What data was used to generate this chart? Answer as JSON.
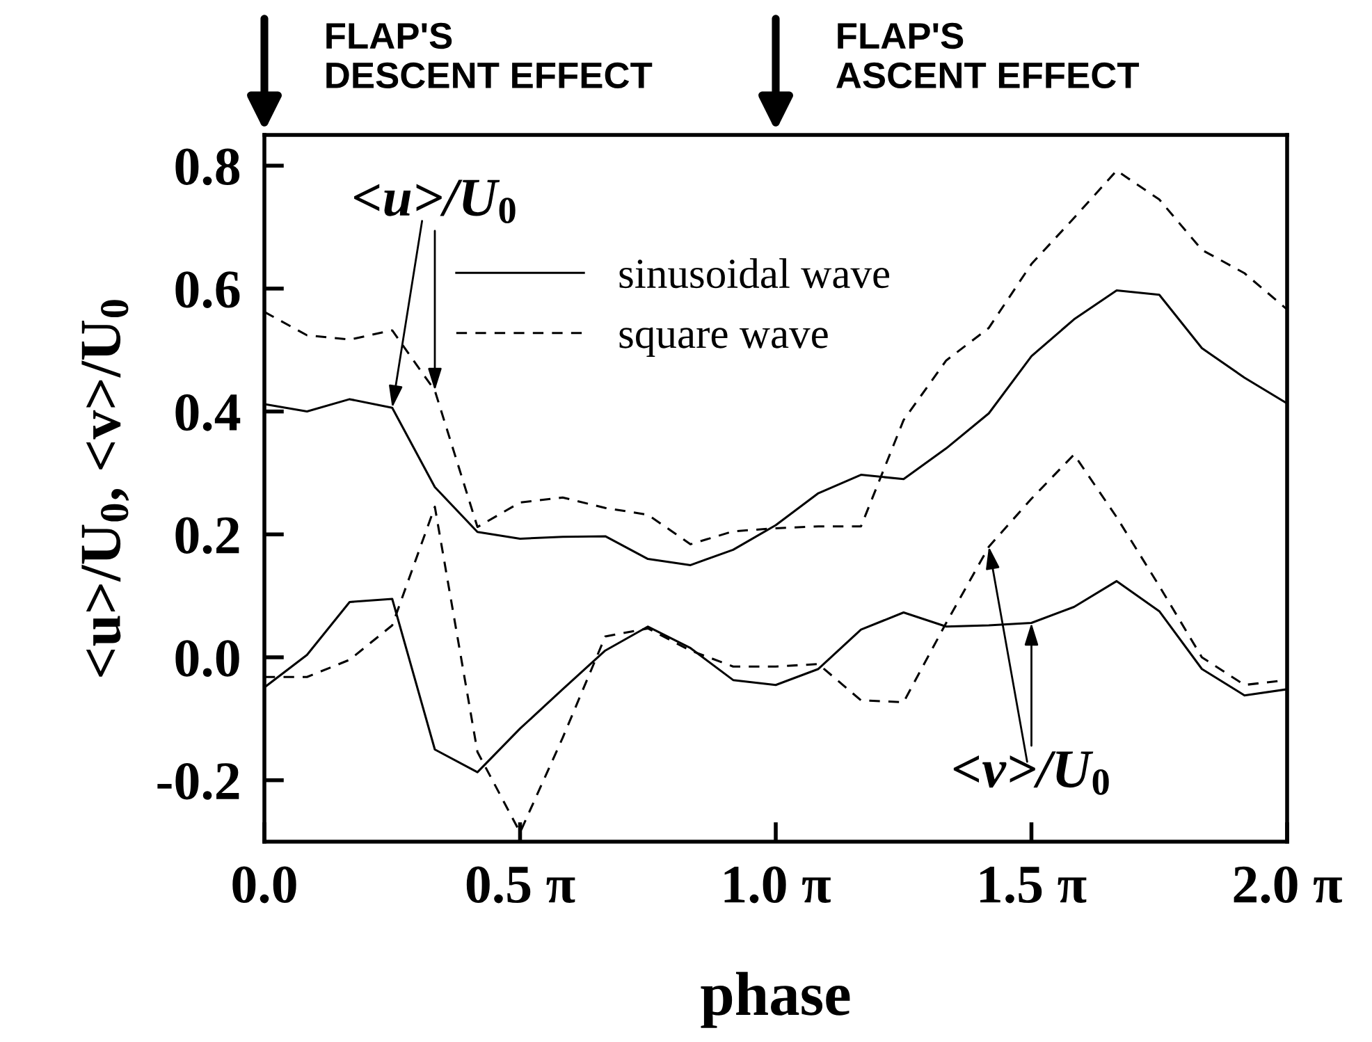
{
  "chart_data": {
    "type": "line",
    "xlabel": "phase",
    "ylabel": "<u>/U$_{0}$, <v>/U$_{0}$",
    "categories": [
      "0.0",
      null,
      null,
      null,
      null,
      null,
      "0.5 π",
      null,
      null,
      null,
      null,
      null,
      "1.0 π",
      null,
      null,
      null,
      null,
      null,
      "1.5 π",
      null,
      null,
      null,
      null,
      null,
      "2.0 π"
    ],
    "series": [
      {
        "name": "sinusoidal wave",
        "color": "#000000",
        "line_style": "solid",
        "values": [
          0.412,
          0.4,
          0.42,
          0.406,
          0.277,
          0.204,
          0.193,
          0.196,
          0.197,
          0.16,
          0.15,
          0.175,
          0.215,
          0.267,
          0.297,
          0.29,
          0.34,
          0.397,
          0.49,
          0.55,
          0.597,
          0.59,
          0.503,
          0.455,
          0.413
        ]
      },
      {
        "name": "square wave",
        "color": "#000000",
        "line_style": "dashed",
        "values": [
          0.562,
          0.524,
          0.517,
          0.532,
          0.434,
          0.212,
          0.252,
          0.26,
          0.243,
          0.232,
          0.184,
          0.205,
          0.21,
          0.213,
          0.213,
          0.386,
          0.483,
          0.536,
          0.64,
          0.715,
          0.792,
          0.745,
          0.663,
          0.625,
          0.566
        ]
      },
      {
        "color": "#000000",
        "line_style": "solid",
        "values": [
          -0.049,
          0.004,
          0.09,
          0.095,
          -0.15,
          -0.187,
          -0.116,
          -0.052,
          0.011,
          0.05,
          0.015,
          -0.037,
          -0.045,
          -0.019,
          0.045,
          0.073,
          0.05,
          0.052,
          0.056,
          0.082,
          0.124,
          0.075,
          -0.019,
          -0.062,
          -0.052
        ]
      },
      {
        "color": "#000000",
        "line_style": "dashed",
        "values": [
          -0.032,
          -0.032,
          -0.004,
          0.052,
          0.245,
          -0.154,
          -0.285,
          -0.131,
          0.034,
          0.047,
          0.011,
          -0.015,
          -0.015,
          -0.011,
          -0.07,
          -0.073,
          0.056,
          0.18,
          0.258,
          0.33,
          0.228,
          0.116,
          0.0,
          -0.045,
          -0.037
        ]
      }
    ],
    "ylim": [
      -0.3,
      0.85
    ],
    "yticks": [
      {
        "value": -0.2,
        "label": "-0.2"
      },
      {
        "value": 0,
        "label": "0.0"
      },
      {
        "value": 0.2,
        "label": "0.2"
      },
      {
        "value": 0.4,
        "label": "0.4"
      },
      {
        "value": 0.6,
        "label": "0.6"
      },
      {
        "value": 0.8,
        "label": "0.8"
      }
    ],
    "legend": "top",
    "grid": false,
    "marker": "none",
    "annotations": [
      "FLAP'S\nDESCENT EFFECT",
      "FLAP'S\nASCENT EFFECT",
      {
        "text": "<u>/U$_{0}$",
        "y": 0.434
      },
      {
        "text": "<v>/U$_{0}$",
        "y": 0.056
      }
    ]
  }
}
